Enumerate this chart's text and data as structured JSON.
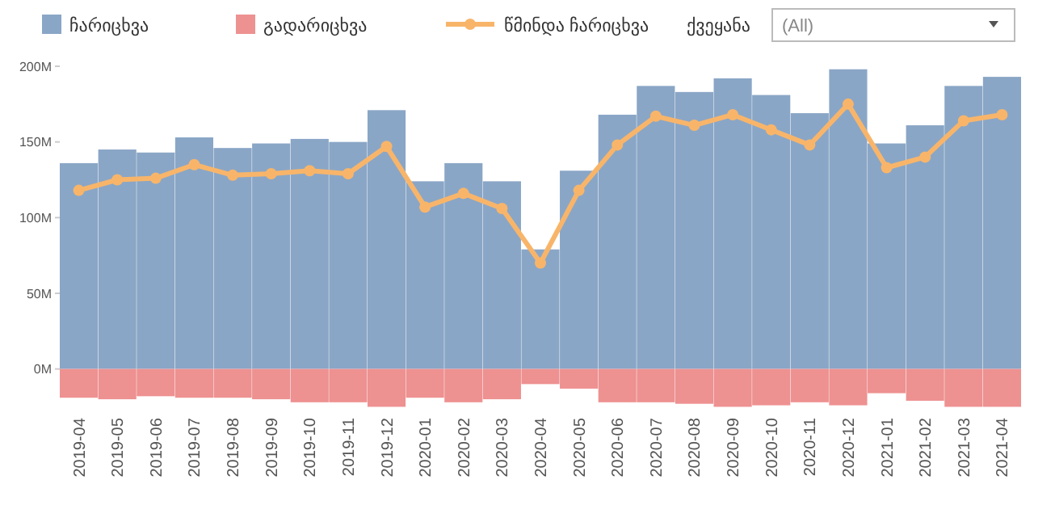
{
  "chart_data": {
    "type": "bar",
    "stacked": true,
    "categories": [
      "2019-04",
      "2019-05",
      "2019-06",
      "2019-07",
      "2019-08",
      "2019-09",
      "2019-10",
      "2019-11",
      "2019-12",
      "2020-01",
      "2020-02",
      "2020-03",
      "2020-04",
      "2020-05",
      "2020-06",
      "2020-07",
      "2020-08",
      "2020-09",
      "2020-10",
      "2020-11",
      "2020-12",
      "2021-01",
      "2021-02",
      "2021-03",
      "2021-04"
    ],
    "series": [
      {
        "name": "ჩარიცხვა",
        "color": "#8aa6c6",
        "values": [
          136,
          145,
          143,
          153,
          146,
          149,
          152,
          150,
          171,
          124,
          136,
          124,
          79,
          131,
          168,
          187,
          183,
          192,
          181,
          169,
          198,
          149,
          161,
          187,
          193
        ]
      },
      {
        "name": "გადარიცხვა",
        "color": "#ee9191",
        "values": [
          -19,
          -20,
          -18,
          -19,
          -19,
          -20,
          -22,
          -22,
          -25,
          -19,
          -22,
          -20,
          -10,
          -13,
          -22,
          -22,
          -23,
          -25,
          -24,
          -22,
          -24,
          -16,
          -21,
          -25,
          -25
        ]
      },
      {
        "name": "წმინდა ჩარიცხვა",
        "type": "line",
        "color": "#f8b56a",
        "marker": "circle",
        "values": [
          118,
          125,
          126,
          135,
          128,
          129,
          131,
          129,
          147,
          107,
          116,
          106,
          70,
          118,
          148,
          167,
          161,
          168,
          158,
          148,
          175,
          133,
          140,
          164,
          168
        ]
      }
    ],
    "ylim": [
      -27,
      200
    ],
    "yticks": [
      {
        "value": 0,
        "label": "0M"
      },
      {
        "value": 50,
        "label": "50M"
      },
      {
        "value": 100,
        "label": "100M"
      },
      {
        "value": 150,
        "label": "150M"
      },
      {
        "value": 200,
        "label": "200M"
      }
    ],
    "grid": false,
    "legend": "top left",
    "annotations": [
      "ქვეყანა",
      "(All)"
    ]
  }
}
